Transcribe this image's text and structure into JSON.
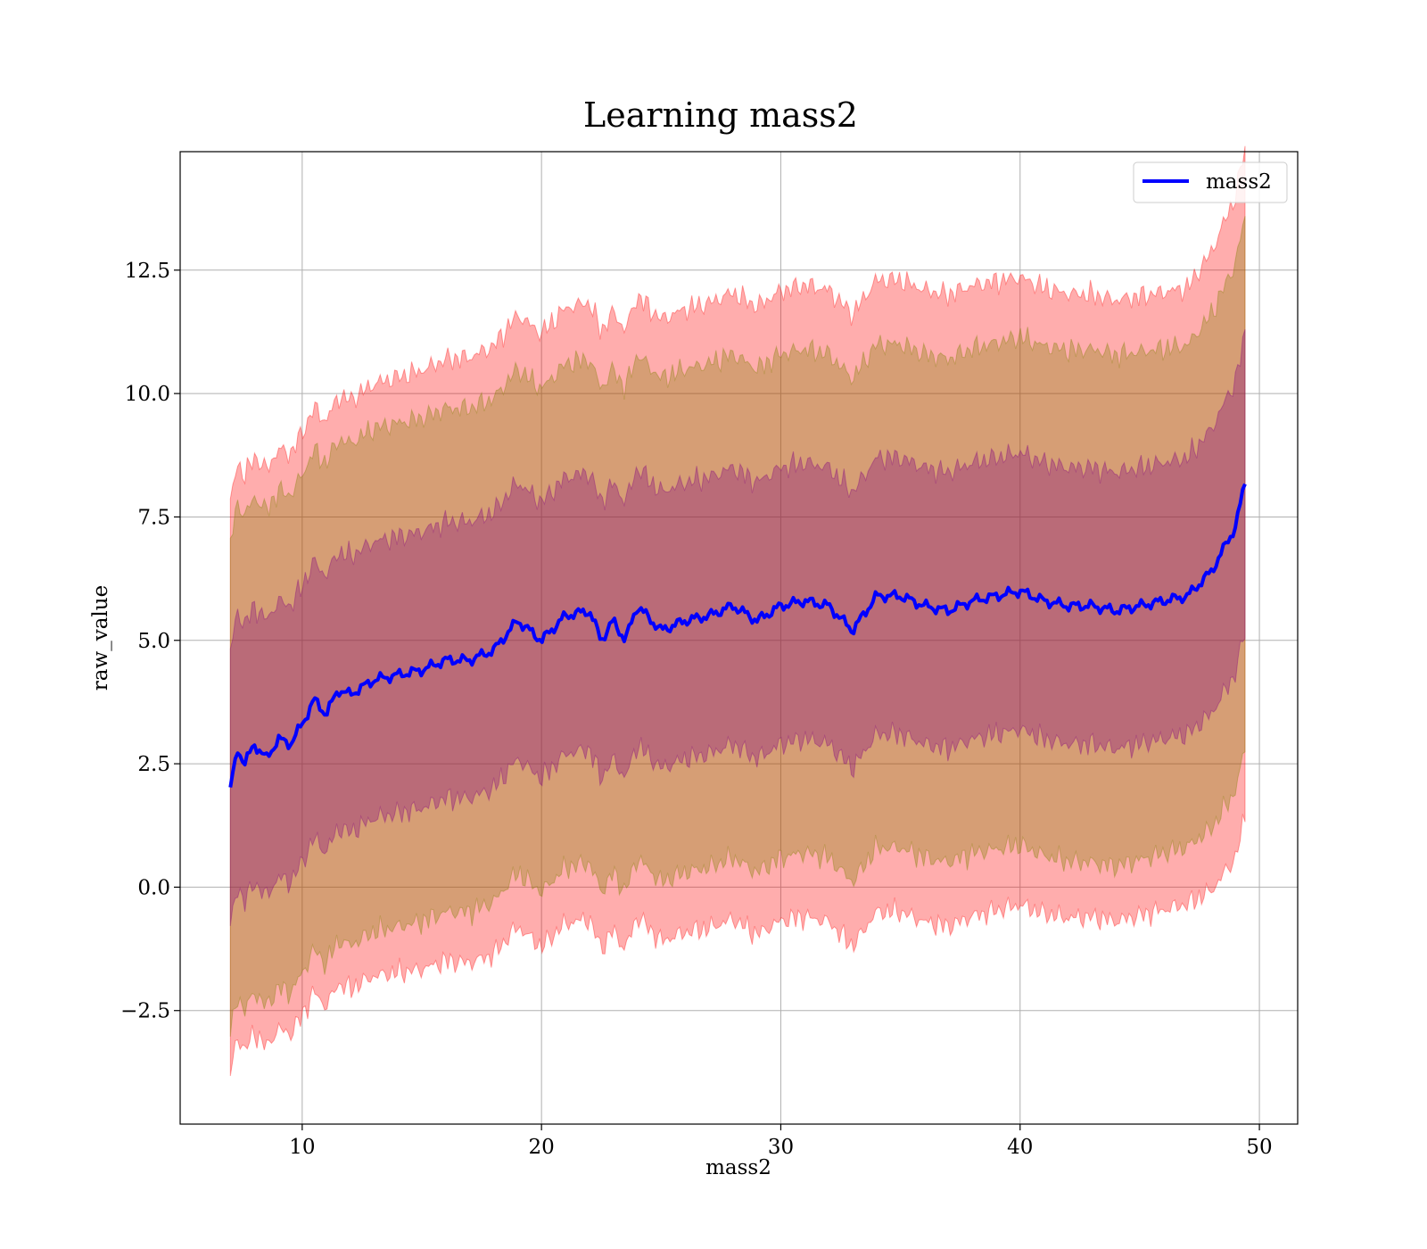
{
  "chart_data": {
    "type": "line",
    "title": "Learning mass2",
    "xlabel": "mass2",
    "ylabel": "raw_value",
    "xlim": [
      4.9,
      51.6
    ],
    "ylim": [
      -4.8,
      14.9
    ],
    "xticks": [
      10,
      20,
      30,
      40,
      50
    ],
    "yticks": [
      -2.5,
      0.0,
      2.5,
      5.0,
      7.5,
      10.0,
      12.5
    ],
    "xtick_labels": [
      "10",
      "20",
      "30",
      "40",
      "50"
    ],
    "ytick_labels": [
      "−2.5",
      "0.0",
      "2.5",
      "5.0",
      "7.5",
      "10.0",
      "12.5"
    ],
    "grid": true,
    "legend": {
      "position": "top-right",
      "entries": [
        "mass2"
      ]
    },
    "series": [
      {
        "name": "mass2",
        "color": "#0000ff",
        "x": [
          7.0,
          7.3,
          7.6,
          8.0,
          8.5,
          9.0,
          9.5,
          10.0,
          10.5,
          11.0,
          11.5,
          12.0,
          13.0,
          14.0,
          15.0,
          16.0,
          17.0,
          18.0,
          19.0,
          20.0,
          21.0,
          22.0,
          22.5,
          23.0,
          23.5,
          24.0,
          25.0,
          26.0,
          27.0,
          28.0,
          29.0,
          30.0,
          31.0,
          32.0,
          33.0,
          34.0,
          35.0,
          36.0,
          37.0,
          38.0,
          39.0,
          40.0,
          41.0,
          42.0,
          43.0,
          44.0,
          45.0,
          46.0,
          47.0,
          48.0,
          49.0,
          49.4
        ],
        "y": [
          2.0,
          2.8,
          2.5,
          2.9,
          2.6,
          3.0,
          2.9,
          3.3,
          3.8,
          3.5,
          4.0,
          3.9,
          4.2,
          4.3,
          4.4,
          4.6,
          4.6,
          4.8,
          5.4,
          5.0,
          5.5,
          5.6,
          5.0,
          5.4,
          5.0,
          5.7,
          5.2,
          5.4,
          5.5,
          5.7,
          5.4,
          5.7,
          5.8,
          5.7,
          5.2,
          5.9,
          5.9,
          5.7,
          5.6,
          5.8,
          5.9,
          6.0,
          5.8,
          5.7,
          5.7,
          5.6,
          5.7,
          5.8,
          5.9,
          6.4,
          7.3,
          8.2
        ]
      }
    ],
    "bands": [
      {
        "label": "",
        "color": "#ff0000",
        "opacity": 0.32,
        "sigma": 3,
        "half_width": [
          5.8,
          6.0,
          6.2,
          6.3,
          6.4,
          6.4,
          6.3,
          6.2
        ]
      },
      {
        "label": "",
        "color": "#808000",
        "opacity": 0.32,
        "sigma": 2,
        "half_width": [
          5.0,
          5.1,
          5.1,
          5.1,
          5.1,
          5.1,
          5.2,
          5.0
        ]
      },
      {
        "label": "",
        "color": "#800080",
        "opacity": 0.32,
        "sigma": 1,
        "half_width": [
          2.8,
          2.8,
          2.8,
          2.8,
          2.8,
          2.8,
          2.8,
          2.8
        ]
      }
    ]
  }
}
